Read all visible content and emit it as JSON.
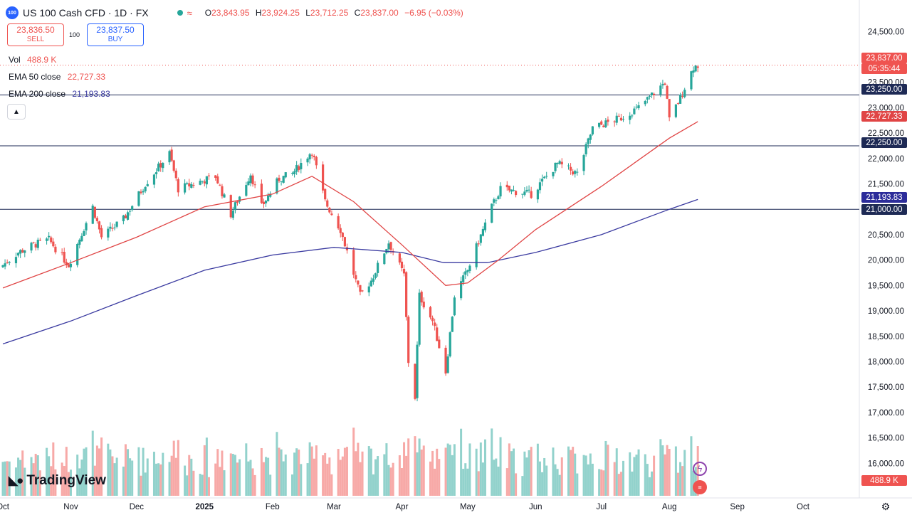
{
  "header": {
    "logo_text": "100",
    "title": "US 100 Cash CFD · 1D · FX",
    "ohlc": [
      {
        "k": "O",
        "v": "23,843.95"
      },
      {
        "k": "H",
        "v": "23,924.25"
      },
      {
        "k": "L",
        "v": "23,712.25"
      },
      {
        "k": "C",
        "v": "23,837.00"
      }
    ],
    "change": "−6.95 (−0.03%)"
  },
  "trade": {
    "sell_price": "23,836.50",
    "sell_label": "SELL",
    "buy_price": "23,837.50",
    "buy_label": "BUY",
    "spread": "100"
  },
  "legend": {
    "vol_label": "Vol",
    "vol_value": "488.9 K",
    "ema50_label": "EMA 50 close",
    "ema50_value": "22,727.33",
    "ema200_label": "EMA 200 close",
    "ema200_value": "21,193.83"
  },
  "price_tags": {
    "last": "23,837.00",
    "countdown": "05:35:44",
    "level_23250": "23,250.00",
    "ema50": "22,727.33",
    "level_22250": "22,250.00",
    "ema200": "21,193.83",
    "level_21000": "21,000.00",
    "volume": "488.9 K"
  },
  "brand": {
    "name": "TradingView"
  },
  "colors": {
    "up": "#26a69a",
    "down": "#ef5350",
    "ema50": "#e04545",
    "ema200": "#3a3aa0",
    "accent": "#2962ff"
  },
  "icons": [
    "collapse-legend-icon",
    "lightning-icon",
    "us-flag-icon",
    "settings-gear-icon"
  ],
  "chart_data": {
    "type": "candlestick",
    "title": "US 100 Cash CFD",
    "interval": "1D",
    "y_axis": {
      "ticks": [
        16000,
        16500,
        17000,
        17500,
        18000,
        18500,
        19000,
        19500,
        20000,
        20500,
        21000,
        21500,
        22000,
        22500,
        23000,
        23500,
        24000,
        24500
      ],
      "tick_labels": [
        "16,000.00",
        "16,500.00",
        "17,000.00",
        "17,500.00",
        "18,000.00",
        "18,500.00",
        "19,000.00",
        "19,500.00",
        "20,000.00",
        "20,500.00",
        "21,000.00",
        "21,500.00",
        "22,000.00",
        "22,500.00",
        "23,000.00",
        "23,500.00",
        "24,000.00",
        "24,500.00"
      ],
      "range": [
        15850,
        24700
      ]
    },
    "x_axis": {
      "labels": [
        "Oct",
        "Nov",
        "Dec",
        "2025",
        "Feb",
        "Mar",
        "Apr",
        "May",
        "Jun",
        "Jul",
        "Aug",
        "Sep",
        "Oct"
      ],
      "label_dates": [
        "2024-10-01",
        "2024-11-01",
        "2024-12-01",
        "2025-01-01",
        "2025-02-01",
        "2025-03-01",
        "2025-04-01",
        "2025-05-01",
        "2025-06-01",
        "2025-07-01",
        "2025-08-01",
        "2025-09-01",
        "2025-10-01"
      ]
    },
    "horizontal_lines": [
      23250,
      22250,
      21000
    ],
    "last_price": 23837,
    "price_path": [
      [
        "2024-10-01",
        19900
      ],
      [
        "2024-10-08",
        20150
      ],
      [
        "2024-10-15",
        20300
      ],
      [
        "2024-10-22",
        20400
      ],
      [
        "2024-10-31",
        19900
      ],
      [
        "2024-11-11",
        21050
      ],
      [
        "2024-11-15",
        20450
      ],
      [
        "2024-11-25",
        20800
      ],
      [
        "2024-12-05",
        21500
      ],
      [
        "2024-12-16",
        22100
      ],
      [
        "2024-12-20",
        21400
      ],
      [
        "2025-01-06",
        21650
      ],
      [
        "2025-01-13",
        20900
      ],
      [
        "2025-01-22",
        21700
      ],
      [
        "2025-01-27",
        21050
      ],
      [
        "2025-02-04",
        21600
      ],
      [
        "2025-02-10",
        21700
      ],
      [
        "2025-02-19",
        22150
      ],
      [
        "2025-02-25",
        21150
      ],
      [
        "2025-03-04",
        20600
      ],
      [
        "2025-03-13",
        19300
      ],
      [
        "2025-03-18",
        19600
      ],
      [
        "2025-03-26",
        20350
      ],
      [
        "2025-04-02",
        19700
      ],
      [
        "2025-04-04",
        18000
      ],
      [
        "2025-04-07",
        17300
      ],
      [
        "2025-04-09",
        19300
      ],
      [
        "2025-04-15",
        18800
      ],
      [
        "2025-04-21",
        17800
      ],
      [
        "2025-04-25",
        19300
      ],
      [
        "2025-05-01",
        19800
      ],
      [
        "2025-05-12",
        21050
      ],
      [
        "2025-05-16",
        21400
      ],
      [
        "2025-05-30",
        21300
      ],
      [
        "2025-06-11",
        21900
      ],
      [
        "2025-06-20",
        21700
      ],
      [
        "2025-06-27",
        22600
      ],
      [
        "2025-07-10",
        22800
      ],
      [
        "2025-07-18",
        23000
      ],
      [
        "2025-07-30",
        23500
      ],
      [
        "2025-08-01",
        22750
      ],
      [
        "2025-08-06",
        23200
      ],
      [
        "2025-08-12",
        23800
      ],
      [
        "2025-08-14",
        23837
      ]
    ],
    "ema50_path": [
      [
        "2024-10-01",
        19450
      ],
      [
        "2024-11-01",
        19950
      ],
      [
        "2024-12-01",
        20450
      ],
      [
        "2025-01-01",
        21050
      ],
      [
        "2025-02-01",
        21300
      ],
      [
        "2025-02-19",
        21650
      ],
      [
        "2025-03-10",
        21150
      ],
      [
        "2025-04-01",
        20300
      ],
      [
        "2025-04-21",
        19500
      ],
      [
        "2025-05-01",
        19550
      ],
      [
        "2025-05-15",
        20000
      ],
      [
        "2025-06-01",
        20600
      ],
      [
        "2025-07-01",
        21450
      ],
      [
        "2025-08-01",
        22400
      ],
      [
        "2025-08-14",
        22727
      ]
    ],
    "ema200_path": [
      [
        "2024-10-01",
        18350
      ],
      [
        "2024-11-01",
        18800
      ],
      [
        "2024-12-01",
        19300
      ],
      [
        "2025-01-01",
        19800
      ],
      [
        "2025-02-01",
        20100
      ],
      [
        "2025-03-01",
        20250
      ],
      [
        "2025-04-01",
        20150
      ],
      [
        "2025-04-20",
        19950
      ],
      [
        "2025-05-10",
        19950
      ],
      [
        "2025-06-01",
        20150
      ],
      [
        "2025-07-01",
        20500
      ],
      [
        "2025-08-01",
        21000
      ],
      [
        "2025-08-14",
        21194
      ]
    ]
  }
}
